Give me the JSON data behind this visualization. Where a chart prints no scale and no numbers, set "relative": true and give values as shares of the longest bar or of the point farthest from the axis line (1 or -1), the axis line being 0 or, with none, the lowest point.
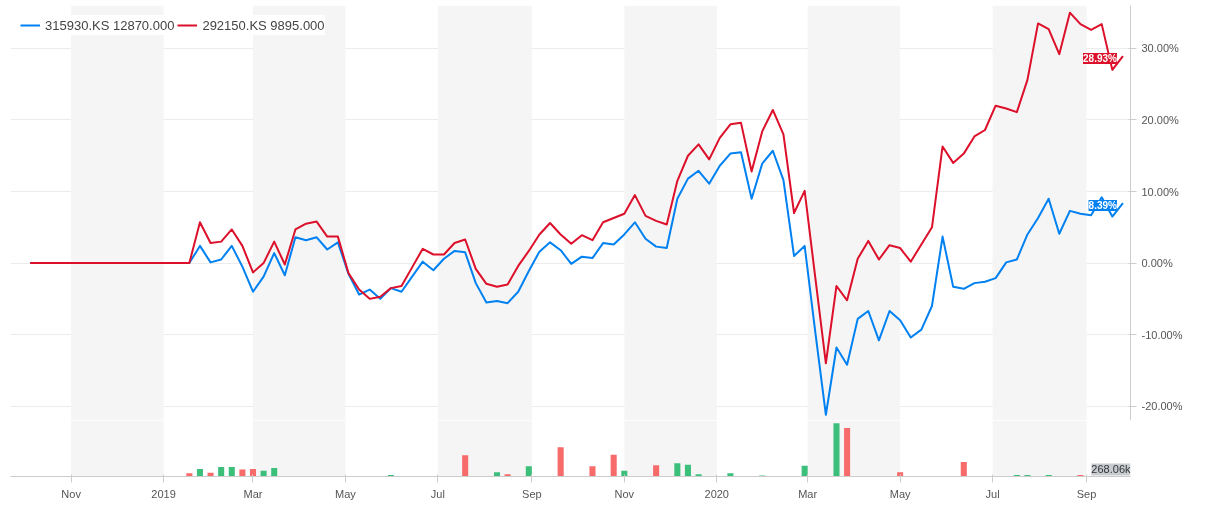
{
  "chart_data": [
    {
      "type": "line",
      "x": [
        "2018-10-05",
        "2019-01-18",
        "2019-01-25",
        "2019-02-01",
        "2019-02-08",
        "2019-02-15",
        "2019-02-22",
        "2019-03-01",
        "2019-03-08",
        "2019-03-15",
        "2019-03-22",
        "2019-03-29",
        "2019-04-05",
        "2019-04-12",
        "2019-04-19",
        "2019-04-26",
        "2019-05-03",
        "2019-05-10",
        "2019-05-17",
        "2019-05-24",
        "2019-05-31",
        "2019-06-07",
        "2019-06-14",
        "2019-06-21",
        "2019-06-28",
        "2019-07-05",
        "2019-07-12",
        "2019-07-19",
        "2019-07-26",
        "2019-08-02",
        "2019-08-09",
        "2019-08-16",
        "2019-08-23",
        "2019-08-30",
        "2019-09-06",
        "2019-09-13",
        "2019-09-20",
        "2019-09-27",
        "2019-10-04",
        "2019-10-11",
        "2019-10-18",
        "2019-10-25",
        "2019-11-01",
        "2019-11-08",
        "2019-11-15",
        "2019-11-22",
        "2019-11-29",
        "2019-12-06",
        "2019-12-13",
        "2019-12-20",
        "2019-12-27",
        "2020-01-03",
        "2020-01-10",
        "2020-01-17",
        "2020-01-24",
        "2020-01-31",
        "2020-02-07",
        "2020-02-14",
        "2020-02-21",
        "2020-02-28",
        "2020-03-06",
        "2020-03-13",
        "2020-03-20",
        "2020-03-27",
        "2020-04-03",
        "2020-04-10",
        "2020-04-17",
        "2020-04-24",
        "2020-05-01",
        "2020-05-08",
        "2020-05-15",
        "2020-05-22",
        "2020-05-29",
        "2020-06-05",
        "2020-06-12",
        "2020-06-19",
        "2020-06-26",
        "2020-07-03",
        "2020-07-10",
        "2020-07-17",
        "2020-07-24",
        "2020-07-31",
        "2020-08-07",
        "2020-08-14",
        "2020-08-21",
        "2020-08-28",
        "2020-09-04",
        "2020-09-11",
        "2020-09-18",
        "2020-09-25"
      ],
      "series": [
        {
          "name": "315930.KS 12870.000",
          "color": "#0081f2",
          "values": [
            0,
            0,
            2.4,
            0.1,
            0.5,
            2.4,
            -0.5,
            -4.0,
            -1.9,
            1.4,
            -1.7,
            3.6,
            3.2,
            3.6,
            1.9,
            2.9,
            -1.5,
            -4.4,
            -3.7,
            -5.0,
            -3.5,
            -4.0,
            -1.9,
            0.2,
            -1.0,
            0.6,
            1.7,
            1.5,
            -2.8,
            -5.5,
            -5.3,
            -5.6,
            -4.0,
            -1.1,
            1.6,
            2.9,
            1.8,
            -0.1,
            0.9,
            0.7,
            2.8,
            2.6,
            4.0,
            5.7,
            3.4,
            2.3,
            2.1,
            9.0,
            11.8,
            12.9,
            11.1,
            13.6,
            15.3,
            15.5,
            9.0,
            13.9,
            15.7,
            11.6,
            1.0,
            2.4,
            -9.6,
            -21.2,
            -11.8,
            -14.2,
            -7.8,
            -6.7,
            -10.8,
            -6.7,
            -8.0,
            -10.4,
            -9.3,
            -6.0,
            3.7,
            -3.3,
            -3.6,
            -2.8,
            -2.6,
            -2.1,
            0.1,
            0.5,
            4.0,
            6.3,
            9.0,
            4.1,
            7.3,
            6.9,
            6.7,
            9.2,
            6.5,
            8.39
          ],
          "value_labels": [
            null,
            null,
            null,
            null,
            null,
            null,
            null,
            null,
            null,
            null,
            null,
            null,
            null,
            null,
            null,
            null,
            null,
            null,
            null,
            null,
            null,
            null,
            null,
            null,
            null,
            null,
            null,
            null,
            null,
            null,
            null,
            null,
            null,
            null,
            null,
            null,
            null,
            null,
            null,
            null,
            null,
            null,
            null,
            null,
            null,
            null,
            null,
            null,
            null,
            null,
            null,
            null,
            null,
            null,
            null,
            null,
            null,
            null,
            null,
            null,
            null,
            null,
            null,
            null,
            null,
            null,
            null,
            null,
            null,
            null,
            null,
            null,
            null,
            null,
            null,
            null,
            null,
            null,
            null,
            null,
            null,
            null,
            null,
            null,
            null,
            null,
            null,
            null,
            null,
            "8.39%"
          ]
        },
        {
          "name": "292150.KS 9895.000",
          "color": "#dc102a",
          "values": [
            0,
            0,
            5.7,
            2.8,
            3.0,
            4.7,
            2.4,
            -1.3,
            0,
            3.0,
            -0.2,
            4.7,
            5.5,
            5.8,
            3.7,
            3.7,
            -1.4,
            -3.7,
            -5.0,
            -4.7,
            -3.5,
            -3.2,
            -0.6,
            2.0,
            1.2,
            1.2,
            2.8,
            3.3,
            -0.8,
            -2.9,
            -3.3,
            -3.0,
            -0.4,
            1.7,
            4.0,
            5.6,
            4.0,
            2.7,
            3.9,
            3.2,
            5.7,
            6.3,
            6.9,
            9.5,
            6.6,
            5.9,
            5.4,
            11.5,
            15.0,
            16.6,
            14.5,
            17.5,
            19.4,
            19.6,
            12.8,
            18.4,
            21.4,
            18.0,
            7.0,
            10.1,
            -2.0,
            -14.0,
            -3.2,
            -5.2,
            0.6,
            3.1,
            0.5,
            2.5,
            2.1,
            0.2,
            2.6,
            5.0,
            16.3,
            14.0,
            15.3,
            17.7,
            18.6,
            22.0,
            21.6,
            21.1,
            25.6,
            33.5,
            32.7,
            29.2,
            35.0,
            33.4,
            32.6,
            33.4,
            27.0,
            28.93
          ],
          "value_labels": [
            null,
            null,
            null,
            null,
            null,
            null,
            null,
            null,
            null,
            null,
            null,
            null,
            null,
            null,
            null,
            null,
            null,
            null,
            null,
            null,
            null,
            null,
            null,
            null,
            null,
            null,
            null,
            null,
            null,
            null,
            null,
            null,
            null,
            null,
            null,
            null,
            null,
            null,
            null,
            null,
            null,
            null,
            null,
            null,
            null,
            null,
            null,
            null,
            null,
            null,
            null,
            null,
            null,
            null,
            null,
            null,
            null,
            null,
            null,
            null,
            null,
            null,
            null,
            null,
            null,
            null,
            null,
            null,
            null,
            null,
            null,
            null,
            null,
            null,
            null,
            null,
            null,
            null,
            null,
            null,
            null,
            null,
            null,
            null,
            null,
            null,
            null,
            null,
            null,
            "28.93%"
          ]
        }
      ],
      "xlim": [
        "2018-09-22",
        "2020-09-30"
      ],
      "ylim": [
        -22,
        36
      ],
      "yticks": [
        {
          "value": -20,
          "label": "-20.00%"
        },
        {
          "value": -10,
          "label": "-10.00%"
        },
        {
          "value": 0,
          "label": "0.00%"
        },
        {
          "value": 10,
          "label": "10.00%"
        },
        {
          "value": 20,
          "label": "20.00%"
        },
        {
          "value": 30,
          "label": "30.00%"
        }
      ],
      "tick_labels": "y",
      "grid": "y",
      "legend": "top left",
      "line_style": "solid",
      "bands": [
        {
          "axis": "x",
          "from": "2018-11-01",
          "to": "2019-01-01",
          "color": "#f5f5f5"
        },
        {
          "axis": "x",
          "from": "2019-03-01",
          "to": "2019-05-01",
          "color": "#f5f5f5"
        },
        {
          "axis": "x",
          "from": "2019-07-01",
          "to": "2019-09-01",
          "color": "#f5f5f5"
        },
        {
          "axis": "x",
          "from": "2019-11-01",
          "to": "2020-01-01",
          "color": "#f5f5f5"
        },
        {
          "axis": "x",
          "from": "2020-03-01",
          "to": "2020-05-01",
          "color": "#f5f5f5"
        },
        {
          "axis": "x",
          "from": "2020-07-01",
          "to": "2020-09-01",
          "color": "#f5f5f5"
        }
      ]
    },
    {
      "type": "bar",
      "relative": true,
      "x": [
        "2019-01-18",
        "2019-01-25",
        "2019-02-01",
        "2019-02-08",
        "2019-02-15",
        "2019-02-22",
        "2019-03-01",
        "2019-03-08",
        "2019-03-15",
        "2019-05-31",
        "2019-07-19",
        "2019-08-09",
        "2019-08-16",
        "2019-08-30",
        "2019-09-20",
        "2019-10-11",
        "2019-10-25",
        "2019-11-01",
        "2019-11-22",
        "2019-12-06",
        "2019-12-13",
        "2019-12-20",
        "2020-01-10",
        "2020-01-31",
        "2020-02-28",
        "2020-03-20",
        "2020-03-27",
        "2020-05-01",
        "2020-06-12",
        "2020-07-17",
        "2020-07-24",
        "2020-08-07",
        "2020-08-28"
      ],
      "values": [
        0.06,
        0.14,
        0.07,
        0.18,
        0.18,
        0.13,
        0.14,
        0.11,
        0.16,
        0.03,
        0.4,
        0.08,
        0.04,
        0.19,
        0.55,
        0.19,
        0.41,
        0.11,
        0.21,
        0.25,
        0.22,
        0.04,
        0.06,
        0.02,
        0.2,
        1.0,
        0.91,
        0.08,
        0.27,
        0.03,
        0.03,
        0.03,
        0.03
      ],
      "colors": [
        "#f76b6b",
        "#3dbf7c",
        "#f76b6b",
        "#3dbf7c",
        "#3dbf7c",
        "#f76b6b",
        "#f76b6b",
        "#3dbf7c",
        "#3dbf7c",
        "#3dbf7c",
        "#f76b6b",
        "#3dbf7c",
        "#f76b6b",
        "#3dbf7c",
        "#f76b6b",
        "#f76b6b",
        "#f76b6b",
        "#3dbf7c",
        "#f76b6b",
        "#3dbf7c",
        "#3dbf7c",
        "#3dbf7c",
        "#3dbf7c",
        "#3dbf7c",
        "#3dbf7c",
        "#3dbf7c",
        "#f76b6b",
        "#f76b6b",
        "#f76b6b",
        "#3dbf7c",
        "#3dbf7c",
        "#3dbf7c",
        "#f76b6b"
      ],
      "xlim": [
        "2018-09-22",
        "2020-09-30"
      ],
      "xticks": [
        {
          "value": "2018-11-01",
          "label": "Nov"
        },
        {
          "value": "2019-01-01",
          "label": "2019"
        },
        {
          "value": "2019-03-01",
          "label": "Mar"
        },
        {
          "value": "2019-05-01",
          "label": "May"
        },
        {
          "value": "2019-07-01",
          "label": "Jul"
        },
        {
          "value": "2019-09-01",
          "label": "Sep"
        },
        {
          "value": "2019-11-01",
          "label": "Nov"
        },
        {
          "value": "2020-01-01",
          "label": "2020"
        },
        {
          "value": "2020-03-01",
          "label": "Mar"
        },
        {
          "value": "2020-05-01",
          "label": "May"
        },
        {
          "value": "2020-07-01",
          "label": "Jul"
        },
        {
          "value": "2020-09-01",
          "label": "Sep"
        }
      ],
      "annotations": [
        "268.06k"
      ],
      "bands": [
        {
          "axis": "x",
          "from": "2018-11-01",
          "to": "2019-01-01",
          "color": "#f5f5f5"
        },
        {
          "axis": "x",
          "from": "2019-03-01",
          "to": "2019-05-01",
          "color": "#f5f5f5"
        },
        {
          "axis": "x",
          "from": "2019-07-01",
          "to": "2019-09-01",
          "color": "#f5f5f5"
        },
        {
          "axis": "x",
          "from": "2019-11-01",
          "to": "2020-01-01",
          "color": "#f5f5f5"
        },
        {
          "axis": "x",
          "from": "2020-03-01",
          "to": "2020-05-01",
          "color": "#f5f5f5"
        },
        {
          "axis": "x",
          "from": "2020-07-01",
          "to": "2020-09-01",
          "color": "#f5f5f5"
        }
      ]
    }
  ]
}
